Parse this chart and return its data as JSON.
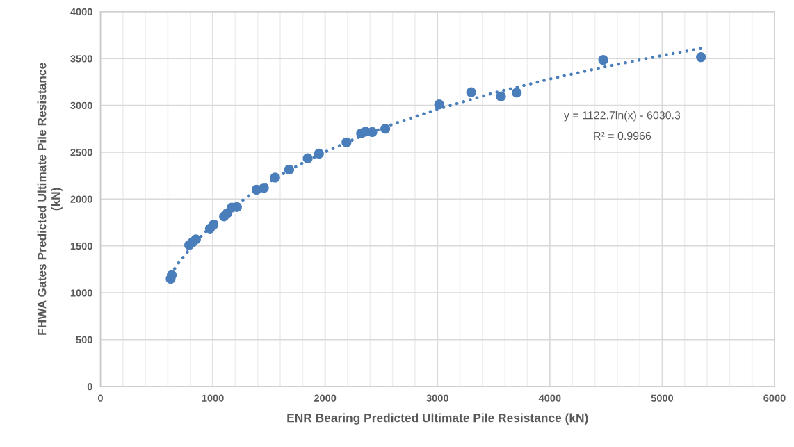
{
  "chart_data": {
    "type": "scatter",
    "xlabel": "ENR Bearing Predicted Ultimate Pile Resistance (kN)",
    "ylabel": "FHWA Gates Predicted Ultimate Pile Resistance (kN)",
    "series": [
      {
        "color": "#4a7ebb",
        "marker": "circle",
        "x": [
          625,
          635,
          790,
          820,
          850,
          975,
          1005,
          1100,
          1130,
          1170,
          1215,
          1390,
          1455,
          1555,
          1680,
          1845,
          1945,
          2190,
          2320,
          2360,
          2420,
          2535,
          3015,
          3300,
          3565,
          3705,
          4475,
          5345
        ],
        "values": [
          1150,
          1190,
          1510,
          1540,
          1570,
          1685,
          1725,
          1815,
          1850,
          1910,
          1915,
          2100,
          2120,
          2230,
          2315,
          2435,
          2485,
          2605,
          2700,
          2720,
          2715,
          2750,
          3010,
          3140,
          3095,
          3135,
          3485,
          3515
        ]
      },
      {
        "type": "line",
        "color": "#4a7ebb",
        "line_style": "dotted",
        "marker": "none",
        "x": [
          625,
          700,
          800,
          900,
          1000,
          1200,
          1400,
          1600,
          1800,
          2000,
          2300,
          2600,
          3000,
          3500,
          4000,
          4500,
          5000,
          5345
        ],
        "values": [
          1197,
          1325,
          1475,
          1607,
          1725,
          1930,
          2103,
          2253,
          2385,
          2503,
          2660,
          2798,
          2959,
          3132,
          3281,
          3414,
          3532,
          3607
        ]
      }
    ],
    "xlim": [
      0,
      6000
    ],
    "ylim": [
      0,
      4000
    ],
    "xticks": [
      0,
      {
        "value": 200,
        "label": null
      },
      {
        "value": 400,
        "label": null
      },
      {
        "value": 600,
        "label": null
      },
      {
        "value": 800,
        "label": null
      },
      1000,
      {
        "value": 1200,
        "label": null
      },
      {
        "value": 1400,
        "label": null
      },
      {
        "value": 1600,
        "label": null
      },
      {
        "value": 1800,
        "label": null
      },
      2000,
      {
        "value": 2200,
        "label": null
      },
      {
        "value": 2400,
        "label": null
      },
      {
        "value": 2600,
        "label": null
      },
      {
        "value": 2800,
        "label": null
      },
      3000,
      {
        "value": 3200,
        "label": null
      },
      {
        "value": 3400,
        "label": null
      },
      {
        "value": 3600,
        "label": null
      },
      {
        "value": 3800,
        "label": null
      },
      4000,
      {
        "value": 4200,
        "label": null
      },
      {
        "value": 4400,
        "label": null
      },
      {
        "value": 4600,
        "label": null
      },
      {
        "value": 4800,
        "label": null
      },
      5000,
      {
        "value": 5200,
        "label": null
      },
      {
        "value": 5400,
        "label": null
      },
      {
        "value": 5600,
        "label": null
      },
      {
        "value": 5800,
        "label": null
      },
      6000
    ],
    "yticks": [
      0,
      500,
      1000,
      1500,
      2000,
      2500,
      3000,
      3500,
      4000
    ],
    "grid": true,
    "annotations": [
      "y = 1122.7ln(x) - 6030.3",
      "R² = 0.9966"
    ]
  }
}
